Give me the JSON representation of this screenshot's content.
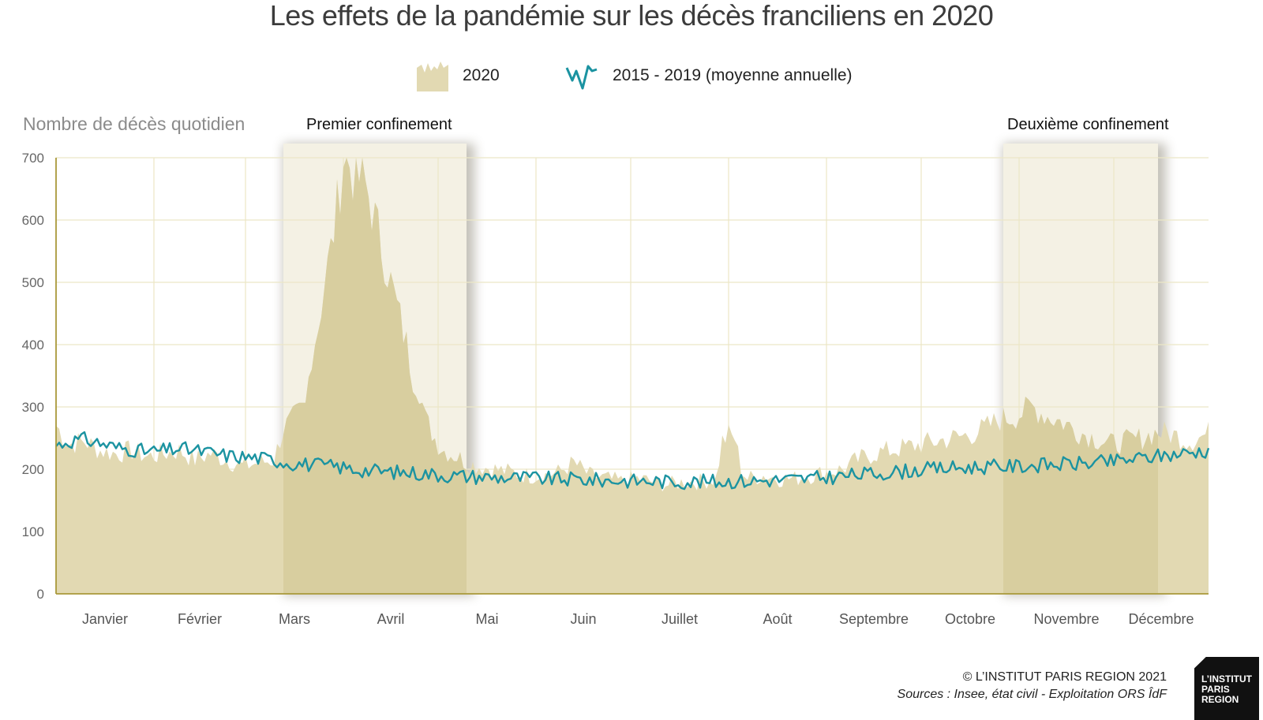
{
  "title": "Les effets de la pandémie sur les décès franciliens en 2020",
  "legend": {
    "area_label": "2020",
    "line_label": "2015 - 2019 (moyenne annuelle)"
  },
  "colors": {
    "area_2020": "#e2d9b2",
    "area_2020_highlight": "#d8ce9f",
    "line_avg": "#1b93a1",
    "grid": "#ece7c6",
    "axis": "#a9993a",
    "lockdown_band": "#f4f1e4"
  },
  "footer": {
    "copyright": "© L’INSTITUT PARIS REGION 2021",
    "sources": "Sources : Insee, état civil - Exploitation ORS ÎdF"
  },
  "logo": {
    "lines": [
      "L’INSTITUT",
      "PARIS",
      "REGION"
    ]
  },
  "chart_data": {
    "type": "area",
    "title": "Les effets de la pandémie sur les décès franciliens en 2020",
    "ylabel": "Nombre de décès quotidien",
    "xlabel": "",
    "ylim": [
      0,
      700
    ],
    "yticks": [
      0,
      100,
      200,
      300,
      400,
      500,
      600,
      700
    ],
    "grid": true,
    "legend_position": "top-center",
    "x_unit": "day of year 2020 (1 = 1 janvier)",
    "xlim": [
      1,
      366
    ],
    "month_labels": [
      "Janvier",
      "Février",
      "Mars",
      "Avril",
      "Mai",
      "Juin",
      "Juillet",
      "Août",
      "Septembre",
      "Octobre",
      "Novembre",
      "Décembre"
    ],
    "month_start_days": [
      1,
      32,
      61,
      92,
      122,
      153,
      183,
      214,
      245,
      275,
      306,
      336
    ],
    "periods": [
      {
        "label": "Premier confinement",
        "start_day": 73,
        "end_day": 131
      },
      {
        "label": "Deuxième confinement",
        "start_day": 301,
        "end_day": 350
      }
    ],
    "series": [
      {
        "name": "2020",
        "kind": "area",
        "points": [
          [
            1,
            270
          ],
          [
            5,
            240
          ],
          [
            10,
            245
          ],
          [
            15,
            230
          ],
          [
            20,
            225
          ],
          [
            25,
            230
          ],
          [
            30,
            220
          ],
          [
            35,
            225
          ],
          [
            40,
            230
          ],
          [
            45,
            215
          ],
          [
            50,
            225
          ],
          [
            55,
            215
          ],
          [
            60,
            205
          ],
          [
            65,
            210
          ],
          [
            70,
            215
          ],
          [
            73,
            265
          ],
          [
            75,
            275
          ],
          [
            78,
            290
          ],
          [
            80,
            300
          ],
          [
            82,
            390
          ],
          [
            84,
            430
          ],
          [
            86,
            500
          ],
          [
            88,
            550
          ],
          [
            90,
            620
          ],
          [
            92,
            700
          ],
          [
            94,
            690
          ],
          [
            96,
            660
          ],
          [
            98,
            670
          ],
          [
            100,
            640
          ],
          [
            102,
            600
          ],
          [
            104,
            560
          ],
          [
            106,
            520
          ],
          [
            108,
            480
          ],
          [
            110,
            440
          ],
          [
            112,
            400
          ],
          [
            114,
            350
          ],
          [
            116,
            330
          ],
          [
            118,
            280
          ],
          [
            120,
            260
          ],
          [
            122,
            240
          ],
          [
            124,
            230
          ],
          [
            126,
            225
          ],
          [
            128,
            220
          ],
          [
            130,
            215
          ],
          [
            131,
            210
          ],
          [
            135,
            205
          ],
          [
            140,
            200
          ],
          [
            145,
            195
          ],
          [
            150,
            190
          ],
          [
            155,
            190
          ],
          [
            160,
            195
          ],
          [
            165,
            210
          ],
          [
            170,
            190
          ],
          [
            175,
            185
          ],
          [
            180,
            180
          ],
          [
            185,
            185
          ],
          [
            190,
            180
          ],
          [
            195,
            175
          ],
          [
            200,
            180
          ],
          [
            205,
            180
          ],
          [
            210,
            185
          ],
          [
            212,
            245
          ],
          [
            214,
            255
          ],
          [
            216,
            250
          ],
          [
            218,
            200
          ],
          [
            220,
            185
          ],
          [
            225,
            190
          ],
          [
            230,
            185
          ],
          [
            235,
            185
          ],
          [
            240,
            190
          ],
          [
            245,
            195
          ],
          [
            250,
            200
          ],
          [
            255,
            215
          ],
          [
            260,
            225
          ],
          [
            265,
            230
          ],
          [
            270,
            235
          ],
          [
            275,
            240
          ],
          [
            280,
            245
          ],
          [
            285,
            250
          ],
          [
            290,
            255
          ],
          [
            295,
            265
          ],
          [
            300,
            280
          ],
          [
            305,
            285
          ],
          [
            310,
            300
          ],
          [
            315,
            285
          ],
          [
            320,
            275
          ],
          [
            325,
            260
          ],
          [
            330,
            250
          ],
          [
            335,
            240
          ],
          [
            340,
            245
          ],
          [
            345,
            250
          ],
          [
            350,
            260
          ],
          [
            355,
            255
          ],
          [
            360,
            245
          ],
          [
            365,
            255
          ],
          [
            366,
            258
          ]
        ]
      },
      {
        "name": "2015 - 2019 (moyenne annuelle)",
        "kind": "line",
        "points": [
          [
            1,
            238
          ],
          [
            5,
            245
          ],
          [
            10,
            248
          ],
          [
            15,
            242
          ],
          [
            20,
            235
          ],
          [
            25,
            232
          ],
          [
            30,
            228
          ],
          [
            35,
            230
          ],
          [
            40,
            233
          ],
          [
            45,
            230
          ],
          [
            50,
            226
          ],
          [
            55,
            222
          ],
          [
            60,
            220
          ],
          [
            65,
            218
          ],
          [
            70,
            215
          ],
          [
            75,
            210
          ],
          [
            80,
            208
          ],
          [
            85,
            206
          ],
          [
            90,
            204
          ],
          [
            95,
            200
          ],
          [
            100,
            198
          ],
          [
            105,
            196
          ],
          [
            110,
            195
          ],
          [
            115,
            194
          ],
          [
            120,
            192
          ],
          [
            125,
            190
          ],
          [
            130,
            189
          ],
          [
            135,
            188
          ],
          [
            140,
            187
          ],
          [
            145,
            186
          ],
          [
            150,
            186
          ],
          [
            155,
            185
          ],
          [
            160,
            184
          ],
          [
            165,
            184
          ],
          [
            170,
            183
          ],
          [
            175,
            182
          ],
          [
            180,
            182
          ],
          [
            185,
            181
          ],
          [
            190,
            181
          ],
          [
            195,
            180
          ],
          [
            200,
            180
          ],
          [
            205,
            180
          ],
          [
            210,
            180
          ],
          [
            215,
            181
          ],
          [
            220,
            181
          ],
          [
            225,
            182
          ],
          [
            230,
            183
          ],
          [
            235,
            184
          ],
          [
            240,
            185
          ],
          [
            245,
            187
          ],
          [
            250,
            189
          ],
          [
            255,
            191
          ],
          [
            260,
            193
          ],
          [
            265,
            195
          ],
          [
            270,
            197
          ],
          [
            275,
            199
          ],
          [
            280,
            201
          ],
          [
            285,
            202
          ],
          [
            290,
            203
          ],
          [
            295,
            204
          ],
          [
            300,
            204
          ],
          [
            305,
            205
          ],
          [
            310,
            206
          ],
          [
            315,
            207
          ],
          [
            320,
            208
          ],
          [
            325,
            209
          ],
          [
            330,
            210
          ],
          [
            335,
            212
          ],
          [
            340,
            215
          ],
          [
            345,
            218
          ],
          [
            350,
            221
          ],
          [
            355,
            224
          ],
          [
            360,
            227
          ],
          [
            365,
            230
          ],
          [
            366,
            232
          ]
        ]
      }
    ]
  }
}
